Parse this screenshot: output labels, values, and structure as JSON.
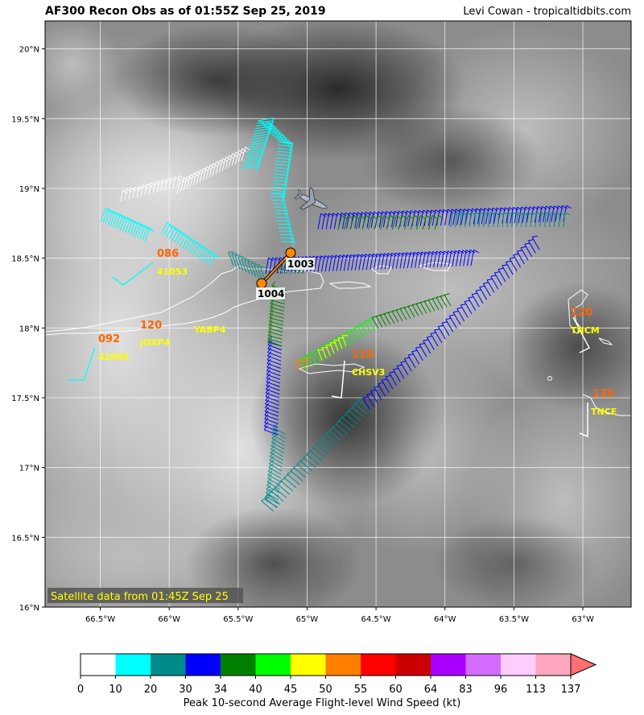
{
  "header": {
    "title": "AF300 Recon Obs as of 01:55Z Sep 25, 2019",
    "credit": "Levi Cowan - tropicaltidbits.com"
  },
  "map": {
    "lon_range": [
      -66.9,
      -62.65
    ],
    "lat_range": [
      16.0,
      20.2
    ],
    "lon_ticks": [
      -66.5,
      -66.0,
      -65.5,
      -65.0,
      -64.5,
      -64.0,
      -63.5,
      -63.0
    ],
    "lon_tick_labels": [
      "66.5°W",
      "66°W",
      "65.5°W",
      "65°W",
      "64.5°W",
      "64°W",
      "63.5°W",
      "63°W"
    ],
    "lat_ticks": [
      16.0,
      16.5,
      17.0,
      17.5,
      18.0,
      18.5,
      19.0,
      19.5,
      20.0
    ],
    "lat_tick_labels": [
      "16°N",
      "16.5°N",
      "17°N",
      "17.5°N",
      "18°N",
      "18.5°N",
      "19°N",
      "19.5°N",
      "20°N"
    ],
    "satellite_note": "Satellite data from 01:45Z Sep 25",
    "pressure_fixes": [
      {
        "label": "1003",
        "lon": -65.09,
        "lat": 18.55
      },
      {
        "label": "1004",
        "lon": -65.32,
        "lat": 18.32
      }
    ],
    "stations": [
      {
        "id": "41053",
        "value": "086",
        "lon": -66.0,
        "lat": 18.47
      },
      {
        "id": "42085",
        "value": "092",
        "lon": -66.5,
        "lat": 17.87
      },
      {
        "id": "JOXP4",
        "value": "120",
        "lon": -66.1,
        "lat": 17.96
      },
      {
        "id": "YABP4",
        "value": "",
        "lon": -65.5,
        "lat": 17.96
      },
      {
        "id": "CHSV3",
        "value": "110",
        "lon": -64.65,
        "lat": 17.72
      },
      {
        "id": "TNCM",
        "value": "120",
        "lon": -63.05,
        "lat": 18.05
      },
      {
        "id": "TNCE",
        "value": "130",
        "lon": -62.97,
        "lat": 17.5
      }
    ]
  },
  "colorbar": {
    "ticks": [
      "0",
      "10",
      "20",
      "30",
      "34",
      "40",
      "45",
      "50",
      "55",
      "60",
      "64",
      "83",
      "96",
      "113",
      "137"
    ],
    "colors": [
      "#ffffff",
      "#00ffff",
      "#008b8b",
      "#0000ff",
      "#008000",
      "#00ff00",
      "#ffff00",
      "#ff7f00",
      "#ff0000",
      "#cd0000",
      "#aa00ff",
      "#d36bff",
      "#ffccff",
      "#ffa6c0",
      "#ff6f6f"
    ],
    "label": "Peak 10-second Average Flight-level Wind Speed (kt)"
  },
  "colors": {
    "station_value": "#ff6600",
    "station_id": "#ffff00",
    "aircraft_track": "#ff8800"
  }
}
